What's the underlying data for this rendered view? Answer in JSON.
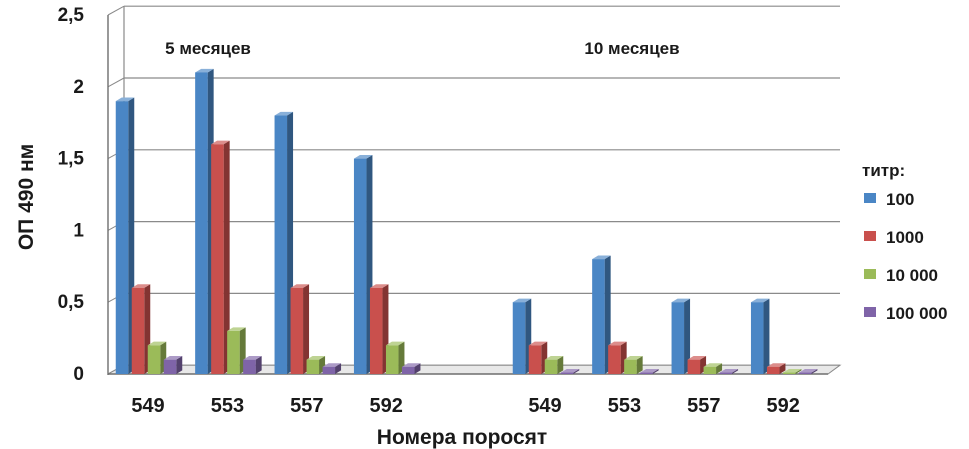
{
  "chart_data": {
    "type": "bar",
    "ylabel": "ОП 490 нм",
    "xlabel": "Номера поросят",
    "ylim": [
      0,
      2.5
    ],
    "yticks": [
      "0",
      "0,5",
      "1",
      "1,5",
      "2",
      "2,5"
    ],
    "grid": true,
    "legend_position": "right",
    "legend_title": "титр:",
    "groups": [
      {
        "label": "5 месяцев",
        "categories": [
          "549",
          "553",
          "557",
          "592"
        ]
      },
      {
        "label": "10 месяцев",
        "categories": [
          "549",
          "553",
          "557",
          "592"
        ]
      }
    ],
    "series": [
      {
        "name": "100",
        "color": "#4a86c5",
        "values": [
          1.9,
          2.1,
          1.8,
          1.5,
          0.5,
          0.8,
          0.5,
          0.5
        ]
      },
      {
        "name": "1000",
        "color": "#c9504d",
        "values": [
          0.6,
          1.6,
          0.6,
          0.6,
          0.2,
          0.2,
          0.1,
          0.05
        ]
      },
      {
        "name": "10 000",
        "color": "#9bbb59",
        "values": [
          0.2,
          0.3,
          0.1,
          0.2,
          0.1,
          0.1,
          0.05,
          0.01
        ]
      },
      {
        "name": "100 000",
        "color": "#7f64a8",
        "values": [
          0.1,
          0.1,
          0.05,
          0.05,
          0.01,
          0.01,
          0.01,
          0.01
        ]
      }
    ]
  }
}
